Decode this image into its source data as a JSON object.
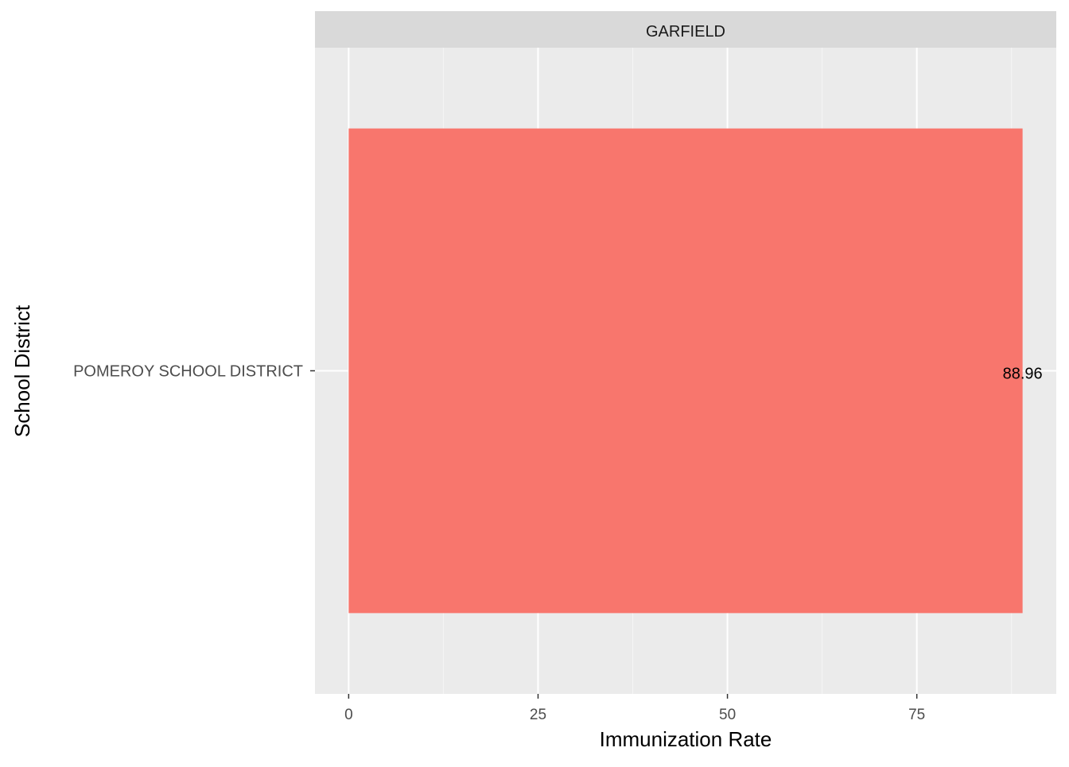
{
  "chart_data": {
    "type": "bar",
    "orientation": "horizontal",
    "facet_label": "GARFIELD",
    "categories": [
      "POMEROY SCHOOL DISTRICT"
    ],
    "values": [
      88.96
    ],
    "data_labels": [
      "88.96"
    ],
    "xlabel": "Immunization Rate",
    "ylabel": "School District",
    "xlim": [
      -4.448,
      93.408
    ],
    "x_ticks": [
      0,
      25,
      50,
      75
    ],
    "x_tick_labels": [
      "0",
      "25",
      "50",
      "75"
    ],
    "grid": true,
    "legend": "none",
    "colors": {
      "bar": "#F8766D",
      "panel_background": "#EBEBEB",
      "strip_background": "#D9D9D9",
      "grid_major": "#FFFFFF",
      "grid_minor": "#F5F5F5",
      "tick_text": "#4D4D4D",
      "title_text": "#000000",
      "strip_text": "#1A1A1A"
    }
  }
}
